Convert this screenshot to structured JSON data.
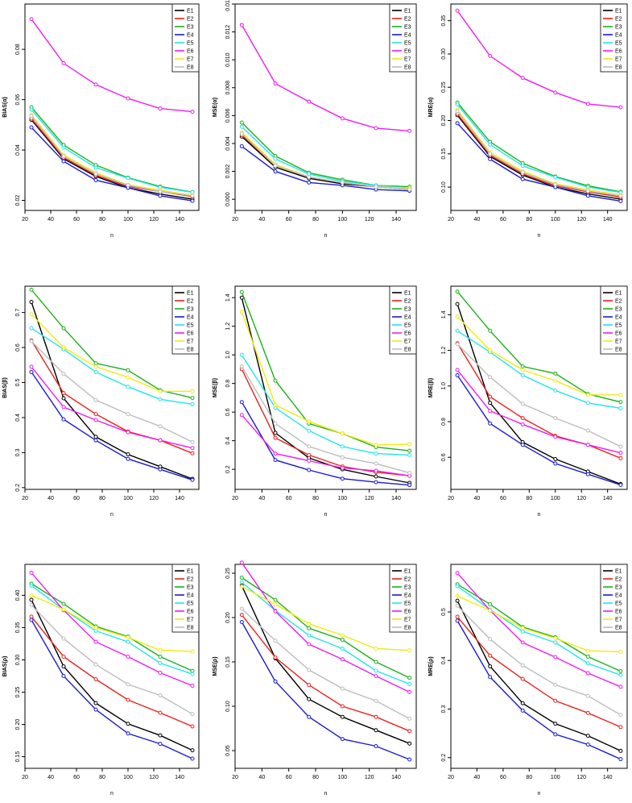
{
  "colors": {
    "E1": "#000000",
    "E2": "#e8231c",
    "E3": "#1db01d",
    "E4": "#1a1ad6",
    "E5": "#22e5ef",
    "E6": "#ef1cef",
    "E7": "#f2ea0d",
    "E8": "#bcbcbc"
  },
  "chart_data": [
    {
      "type": "line",
      "xlabel": "n",
      "ylabel": "BIAS(α)",
      "x": [
        25,
        50,
        75,
        100,
        125,
        150
      ],
      "xlim": [
        20,
        155
      ],
      "xticks": [
        20,
        40,
        60,
        80,
        100,
        120,
        140
      ],
      "ylim": [
        0.016,
        0.098
      ],
      "yticks": [
        0.02,
        0.04,
        0.06,
        0.08
      ],
      "ytick_labels": [
        "0.02",
        "0.04",
        "0.06",
        "0.08"
      ],
      "series": [
        {
          "name": "E1",
          "values": [
            0.052,
            0.0365,
            0.0295,
            0.025,
            0.0225,
            0.0205
          ]
        },
        {
          "name": "E2",
          "values": [
            0.0525,
            0.037,
            0.03,
            0.0255,
            0.0235,
            0.0215
          ]
        },
        {
          "name": "E3",
          "values": [
            0.057,
            0.042,
            0.034,
            0.029,
            0.0255,
            0.0233
          ]
        },
        {
          "name": "E4",
          "values": [
            0.049,
            0.0355,
            0.028,
            0.025,
            0.0218,
            0.0198
          ]
        },
        {
          "name": "E5",
          "values": [
            0.056,
            0.041,
            0.033,
            0.0288,
            0.0252,
            0.0232
          ]
        },
        {
          "name": "E6",
          "values": [
            0.092,
            0.0745,
            0.066,
            0.0605,
            0.0565,
            0.0552
          ]
        },
        {
          "name": "E7",
          "values": [
            0.054,
            0.038,
            0.031,
            0.0262,
            0.024,
            0.022
          ]
        },
        {
          "name": "E8",
          "values": [
            0.0535,
            0.0375,
            0.0305,
            0.026,
            0.0235,
            0.0218
          ]
        }
      ]
    },
    {
      "type": "line",
      "xlabel": "n",
      "ylabel": "MSE(α)",
      "x": [
        25,
        50,
        75,
        100,
        125,
        150
      ],
      "xlim": [
        20,
        155
      ],
      "xticks": [
        20,
        40,
        60,
        80,
        100,
        120,
        140
      ],
      "ylim": [
        -0.0008,
        0.014
      ],
      "yticks": [
        0,
        0.002,
        0.004,
        0.006,
        0.008,
        0.01,
        0.012,
        0.014
      ],
      "ytick_labels": [
        "0.000",
        "0.002",
        "0.004",
        "0.006",
        "0.008",
        "0.010",
        "0.012",
        "0.014"
      ],
      "series": [
        {
          "name": "E1",
          "values": [
            0.0045,
            0.0023,
            0.0015,
            0.0011,
            0.0009,
            0.0007
          ]
        },
        {
          "name": "E2",
          "values": [
            0.0046,
            0.0024,
            0.0016,
            0.0012,
            0.0009,
            0.0008
          ]
        },
        {
          "name": "E3",
          "values": [
            0.0055,
            0.0031,
            0.0019,
            0.0014,
            0.001,
            0.0009
          ]
        },
        {
          "name": "E4",
          "values": [
            0.0038,
            0.002,
            0.0012,
            0.001,
            0.0007,
            0.0006
          ]
        },
        {
          "name": "E5",
          "values": [
            0.0052,
            0.0029,
            0.0018,
            0.0013,
            0.001,
            0.0008
          ]
        },
        {
          "name": "E6",
          "values": [
            0.0125,
            0.0083,
            0.007,
            0.0058,
            0.0051,
            0.0049
          ]
        },
        {
          "name": "E7",
          "values": [
            0.0048,
            0.0025,
            0.0016,
            0.0012,
            0.0009,
            0.0008
          ]
        },
        {
          "name": "E8",
          "values": [
            0.0047,
            0.0024,
            0.0016,
            0.0012,
            0.0009,
            0.0007
          ]
        }
      ]
    },
    {
      "type": "line",
      "xlabel": "n",
      "ylabel": "MRE(α)",
      "x": [
        25,
        50,
        75,
        100,
        125,
        150
      ],
      "xlim": [
        20,
        155
      ],
      "xticks": [
        20,
        40,
        60,
        80,
        100,
        120,
        140
      ],
      "ylim": [
        0.065,
        0.375
      ],
      "yticks": [
        0.1,
        0.15,
        0.2,
        0.25,
        0.3,
        0.35
      ],
      "ytick_labels": [
        "0.10",
        "0.15",
        "0.20",
        "0.25",
        "0.30",
        "0.35"
      ],
      "series": [
        {
          "name": "E1",
          "values": [
            0.208,
            0.146,
            0.118,
            0.1,
            0.09,
            0.082
          ]
        },
        {
          "name": "E2",
          "values": [
            0.21,
            0.148,
            0.12,
            0.102,
            0.093,
            0.085
          ]
        },
        {
          "name": "E3",
          "values": [
            0.227,
            0.168,
            0.136,
            0.116,
            0.102,
            0.093
          ]
        },
        {
          "name": "E4",
          "values": [
            0.196,
            0.142,
            0.112,
            0.1,
            0.087,
            0.079
          ]
        },
        {
          "name": "E5",
          "values": [
            0.224,
            0.164,
            0.132,
            0.115,
            0.1,
            0.092
          ]
        },
        {
          "name": "E6",
          "values": [
            0.365,
            0.297,
            0.264,
            0.242,
            0.225,
            0.22
          ]
        },
        {
          "name": "E7",
          "values": [
            0.216,
            0.152,
            0.124,
            0.105,
            0.096,
            0.088
          ]
        },
        {
          "name": "E8",
          "values": [
            0.214,
            0.15,
            0.122,
            0.104,
            0.094,
            0.087
          ]
        }
      ]
    },
    {
      "type": "line",
      "xlabel": "n",
      "ylabel": "BIAS(β)",
      "x": [
        25,
        50,
        75,
        100,
        125,
        150
      ],
      "xlim": [
        20,
        155
      ],
      "xticks": [
        20,
        40,
        60,
        80,
        100,
        120,
        140
      ],
      "ylim": [
        0.195,
        0.775
      ],
      "yticks": [
        0.2,
        0.3,
        0.4,
        0.5,
        0.6,
        0.7
      ],
      "ytick_labels": [
        "0.2",
        "0.3",
        "0.4",
        "0.5",
        "0.6",
        "0.7"
      ],
      "series": [
        {
          "name": "E1",
          "values": [
            0.73,
            0.455,
            0.345,
            0.295,
            0.26,
            0.225
          ]
        },
        {
          "name": "E2",
          "values": [
            0.62,
            0.47,
            0.41,
            0.36,
            0.335,
            0.298
          ]
        },
        {
          "name": "E3",
          "values": [
            0.765,
            0.655,
            0.555,
            0.535,
            0.478,
            0.456
          ]
        },
        {
          "name": "E4",
          "values": [
            0.53,
            0.395,
            0.335,
            0.282,
            0.252,
            0.222
          ]
        },
        {
          "name": "E5",
          "values": [
            0.655,
            0.595,
            0.53,
            0.488,
            0.452,
            0.438
          ]
        },
        {
          "name": "E6",
          "values": [
            0.545,
            0.43,
            0.393,
            0.358,
            0.335,
            0.313
          ]
        },
        {
          "name": "E7",
          "values": [
            0.695,
            0.6,
            0.545,
            0.515,
            0.475,
            0.475
          ]
        },
        {
          "name": "E8",
          "values": [
            0.618,
            0.525,
            0.45,
            0.41,
            0.375,
            0.33
          ]
        }
      ]
    },
    {
      "type": "line",
      "xlabel": "n",
      "ylabel": "MSE(β)",
      "x": [
        25,
        50,
        75,
        100,
        125,
        150
      ],
      "xlim": [
        20,
        155
      ],
      "xticks": [
        20,
        40,
        60,
        80,
        100,
        120,
        140
      ],
      "ylim": [
        0.06,
        1.48
      ],
      "yticks": [
        0.2,
        0.4,
        0.6,
        0.8,
        1.0,
        1.2,
        1.4
      ],
      "ytick_labels": [
        "0.2",
        "0.4",
        "0.6",
        "0.8",
        "1.0",
        "1.2",
        "1.4"
      ],
      "series": [
        {
          "name": "E1",
          "values": [
            1.4,
            0.455,
            0.28,
            0.2,
            0.15,
            0.105
          ]
        },
        {
          "name": "E2",
          "values": [
            0.9,
            0.42,
            0.3,
            0.22,
            0.18,
            0.155
          ]
        },
        {
          "name": "E3",
          "values": [
            1.44,
            0.82,
            0.52,
            0.45,
            0.355,
            0.33
          ]
        },
        {
          "name": "E4",
          "values": [
            0.67,
            0.265,
            0.195,
            0.135,
            0.11,
            0.09
          ]
        },
        {
          "name": "E5",
          "values": [
            1.0,
            0.63,
            0.47,
            0.36,
            0.31,
            0.3
          ]
        },
        {
          "name": "E6",
          "values": [
            0.58,
            0.31,
            0.26,
            0.21,
            0.19,
            0.155
          ]
        },
        {
          "name": "E7",
          "values": [
            1.3,
            0.65,
            0.535,
            0.45,
            0.37,
            0.375
          ]
        },
        {
          "name": "E8",
          "values": [
            0.92,
            0.52,
            0.36,
            0.285,
            0.24,
            0.175
          ]
        }
      ]
    },
    {
      "type": "line",
      "xlabel": "n",
      "ylabel": "MRE(β)",
      "x": [
        25,
        50,
        75,
        100,
        125,
        150
      ],
      "xlim": [
        20,
        155
      ],
      "xticks": [
        20,
        40,
        60,
        80,
        100,
        120,
        140
      ],
      "ylim": [
        0.42,
        1.56
      ],
      "yticks": [
        0.6,
        0.8,
        1.0,
        1.2,
        1.4
      ],
      "ytick_labels": [
        "0.6",
        "0.8",
        "1.0",
        "1.2",
        "1.4"
      ],
      "series": [
        {
          "name": "E1",
          "values": [
            1.46,
            0.905,
            0.685,
            0.59,
            0.52,
            0.45
          ]
        },
        {
          "name": "E2",
          "values": [
            1.24,
            0.94,
            0.82,
            0.72,
            0.67,
            0.595
          ]
        },
        {
          "name": "E3",
          "values": [
            1.53,
            1.31,
            1.11,
            1.07,
            0.955,
            0.91
          ]
        },
        {
          "name": "E4",
          "values": [
            1.06,
            0.79,
            0.67,
            0.565,
            0.505,
            0.445
          ]
        },
        {
          "name": "E5",
          "values": [
            1.31,
            1.19,
            1.06,
            0.975,
            0.905,
            0.875
          ]
        },
        {
          "name": "E6",
          "values": [
            1.09,
            0.86,
            0.785,
            0.715,
            0.67,
            0.625
          ]
        },
        {
          "name": "E7",
          "values": [
            1.39,
            1.2,
            1.09,
            1.03,
            0.95,
            0.95
          ]
        },
        {
          "name": "E8",
          "values": [
            1.235,
            1.05,
            0.9,
            0.82,
            0.75,
            0.66
          ]
        }
      ]
    },
    {
      "type": "line",
      "xlabel": "n",
      "ylabel": "BIAS(ρ)",
      "x": [
        25,
        50,
        75,
        100,
        125,
        150
      ],
      "xlim": [
        20,
        155
      ],
      "xticks": [
        20,
        40,
        60,
        80,
        100,
        120,
        140
      ],
      "ylim": [
        0.132,
        0.448
      ],
      "yticks": [
        0.15,
        0.2,
        0.25,
        0.3,
        0.35,
        0.4
      ],
      "ytick_labels": [
        "0.15",
        "0.20",
        "0.25",
        "0.30",
        "0.35",
        "0.40"
      ],
      "series": [
        {
          "name": "E1",
          "values": [
            0.393,
            0.29,
            0.233,
            0.201,
            0.183,
            0.16
          ]
        },
        {
          "name": "E2",
          "values": [
            0.367,
            0.305,
            0.27,
            0.238,
            0.218,
            0.197
          ]
        },
        {
          "name": "E3",
          "values": [
            0.418,
            0.387,
            0.352,
            0.336,
            0.305,
            0.283
          ]
        },
        {
          "name": "E4",
          "values": [
            0.362,
            0.275,
            0.223,
            0.186,
            0.17,
            0.147
          ]
        },
        {
          "name": "E5",
          "values": [
            0.415,
            0.378,
            0.345,
            0.328,
            0.295,
            0.278
          ]
        },
        {
          "name": "E6",
          "values": [
            0.435,
            0.377,
            0.328,
            0.305,
            0.28,
            0.26
          ]
        },
        {
          "name": "E7",
          "values": [
            0.4,
            0.378,
            0.35,
            0.335,
            0.315,
            0.313
          ]
        },
        {
          "name": "E8",
          "values": [
            0.385,
            0.333,
            0.293,
            0.262,
            0.245,
            0.216
          ]
        }
      ]
    },
    {
      "type": "line",
      "xlabel": "n",
      "ylabel": "MSE(ρ)",
      "x": [
        25,
        50,
        75,
        100,
        125,
        150
      ],
      "xlim": [
        20,
        155
      ],
      "xticks": [
        20,
        40,
        60,
        80,
        100,
        120,
        140
      ],
      "ylim": [
        0.03,
        0.26
      ],
      "yticks": [
        0.05,
        0.1,
        0.15,
        0.2,
        0.25
      ],
      "ytick_labels": [
        "0.05",
        "0.10",
        "0.15",
        "0.20",
        "0.25"
      ],
      "series": [
        {
          "name": "E1",
          "values": [
            0.236,
            0.154,
            0.108,
            0.088,
            0.073,
            0.058
          ]
        },
        {
          "name": "E2",
          "values": [
            0.203,
            0.155,
            0.124,
            0.1,
            0.088,
            0.072
          ]
        },
        {
          "name": "E3",
          "values": [
            0.245,
            0.22,
            0.188,
            0.175,
            0.15,
            0.132
          ]
        },
        {
          "name": "E4",
          "values": [
            0.195,
            0.128,
            0.088,
            0.063,
            0.055,
            0.04
          ]
        },
        {
          "name": "E5",
          "values": [
            0.24,
            0.208,
            0.18,
            0.165,
            0.14,
            0.125
          ]
        },
        {
          "name": "E6",
          "values": [
            0.262,
            0.207,
            0.17,
            0.153,
            0.134,
            0.116
          ]
        },
        {
          "name": "E7",
          "values": [
            0.235,
            0.215,
            0.193,
            0.18,
            0.165,
            0.163
          ]
        },
        {
          "name": "E8",
          "values": [
            0.21,
            0.174,
            0.141,
            0.12,
            0.106,
            0.086
          ]
        }
      ]
    },
    {
      "type": "line",
      "xlabel": "n",
      "ylabel": "MRE(ρ)",
      "x": [
        25,
        50,
        75,
        100,
        125,
        150
      ],
      "xlim": [
        20,
        155
      ],
      "xticks": [
        20,
        40,
        60,
        80,
        100,
        120,
        140
      ],
      "ylim": [
        0.178,
        0.598
      ],
      "yticks": [
        0.2,
        0.3,
        0.4,
        0.5
      ],
      "ytick_labels": [
        "0.2",
        "0.3",
        "0.4",
        "0.5"
      ],
      "series": [
        {
          "name": "E1",
          "values": [
            0.523,
            0.388,
            0.312,
            0.27,
            0.245,
            0.214
          ]
        },
        {
          "name": "E2",
          "values": [
            0.49,
            0.41,
            0.362,
            0.317,
            0.292,
            0.263
          ]
        },
        {
          "name": "E3",
          "values": [
            0.557,
            0.516,
            0.469,
            0.448,
            0.408,
            0.378
          ]
        },
        {
          "name": "E4",
          "values": [
            0.482,
            0.366,
            0.297,
            0.248,
            0.227,
            0.197
          ]
        },
        {
          "name": "E5",
          "values": [
            0.553,
            0.505,
            0.46,
            0.437,
            0.394,
            0.37
          ]
        },
        {
          "name": "E6",
          "values": [
            0.58,
            0.503,
            0.437,
            0.407,
            0.374,
            0.346
          ]
        },
        {
          "name": "E7",
          "values": [
            0.533,
            0.503,
            0.467,
            0.446,
            0.42,
            0.418
          ]
        },
        {
          "name": "E8",
          "values": [
            0.513,
            0.444,
            0.39,
            0.35,
            0.327,
            0.288
          ]
        }
      ]
    }
  ]
}
